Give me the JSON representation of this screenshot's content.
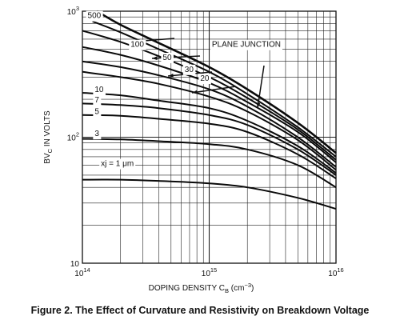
{
  "caption": "Figure 2. The Effect of Curvature and Resistivity on Breakdown Voltage",
  "chart_data": {
    "type": "line",
    "title": "",
    "xlabel": "DOPING DENSITY C_B (cm^-3)",
    "xlabel_parts": {
      "main": "DOPING DENSITY C",
      "sub": "B",
      "unit_open": " (cm",
      "unit_exp": "−3",
      "unit_close": ")"
    },
    "ylabel": "BV_C IN VOLTS",
    "ylabel_parts": {
      "main": "BV",
      "sub": "C",
      "rest": " IN VOLTS"
    },
    "x_scale": "log",
    "y_scale": "log",
    "xlim": [
      100000000000000.0,
      1e+16
    ],
    "ylim": [
      10,
      1000
    ],
    "x_ticks": [
      {
        "value": 100000000000000.0,
        "base": "10",
        "exp": "14"
      },
      {
        "value": 1000000000000000.0,
        "base": "10",
        "exp": "15"
      },
      {
        "value": 1e+16,
        "base": "10",
        "exp": "16"
      }
    ],
    "y_ticks": [
      {
        "value": 10,
        "base": "10",
        "exp": ""
      },
      {
        "value": 100,
        "base": "10",
        "exp": "2"
      },
      {
        "value": 1000,
        "base": "10",
        "exp": "3"
      }
    ],
    "grid": true,
    "series": [
      {
        "name": "500",
        "x": [
          120000000000000.0,
          200000000000000.0,
          400000000000000.0,
          1000000000000000.0,
          2000000000000000.0,
          5000000000000000.0,
          1e+16
        ],
        "y": [
          830,
          680,
          500,
          330,
          220,
          120,
          70
        ]
      },
      {
        "name": "100",
        "x": [
          100000000000000.0,
          200000000000000.0,
          400000000000000.0,
          1000000000000000.0,
          2000000000000000.0,
          5000000000000000.0,
          1e+16
        ],
        "y": [
          700,
          570,
          440,
          300,
          205,
          115,
          66
        ]
      },
      {
        "name": "50",
        "x": [
          100000000000000.0,
          200000000000000.0,
          400000000000000.0,
          1000000000000000.0,
          2000000000000000.0,
          5000000000000000.0,
          1e+16
        ],
        "y": [
          520,
          450,
          370,
          270,
          190,
          110,
          63
        ]
      },
      {
        "name": "30",
        "x": [
          100000000000000.0,
          200000000000000.0,
          400000000000000.0,
          1000000000000000.0,
          2000000000000000.0,
          5000000000000000.0,
          1e+16
        ],
        "y": [
          400,
          360,
          310,
          240,
          175,
          100,
          58
        ]
      },
      {
        "name": "20",
        "x": [
          100000000000000.0,
          200000000000000.0,
          400000000000000.0,
          1000000000000000.0,
          2000000000000000.0,
          5000000000000000.0,
          1e+16
        ],
        "y": [
          330,
          300,
          265,
          210,
          160,
          95,
          55
        ]
      },
      {
        "name": "10",
        "x": [
          100000000000000.0,
          200000000000000.0,
          400000000000000.0,
          1000000000000000.0,
          2000000000000000.0,
          5000000000000000.0,
          1e+16
        ],
        "y": [
          225,
          215,
          195,
          170,
          135,
          85,
          52
        ]
      },
      {
        "name": "7",
        "x": [
          100000000000000.0,
          200000000000000.0,
          400000000000000.0,
          1000000000000000.0,
          2000000000000000.0,
          5000000000000000.0,
          1e+16
        ],
        "y": [
          185,
          180,
          170,
          150,
          125,
          80,
          50
        ]
      },
      {
        "name": "5",
        "x": [
          100000000000000.0,
          200000000000000.0,
          400000000000000.0,
          1000000000000000.0,
          2000000000000000.0,
          5000000000000000.0,
          1e+16
        ],
        "y": [
          150,
          148,
          140,
          128,
          110,
          73,
          47
        ]
      },
      {
        "name": "3",
        "x": [
          100000000000000.0,
          200000000000000.0,
          400000000000000.0,
          1000000000000000.0,
          2000000000000000.0,
          5000000000000000.0,
          1e+16
        ],
        "y": [
          97,
          96,
          93,
          88,
          80,
          60,
          40
        ]
      },
      {
        "name": "xj = 1 μm",
        "x": [
          100000000000000.0,
          200000000000000.0,
          400000000000000.0,
          1000000000000000.0,
          2000000000000000.0,
          5000000000000000.0,
          1e+16
        ],
        "y": [
          46,
          46,
          45,
          43,
          40,
          33,
          27
        ]
      },
      {
        "name": "PLANE JUNCTION",
        "x": [
          130000000000000.0,
          200000000000000.0,
          400000000000000.0,
          1000000000000000.0,
          2000000000000000.0,
          5000000000000000.0,
          1e+16
        ],
        "y": [
          1000,
          780,
          560,
          360,
          240,
          130,
          75
        ]
      }
    ],
    "annotations": [
      {
        "text": "500",
        "x": 110000000000000.0,
        "y": 880
      },
      {
        "text": "100",
        "x": 240000000000000.0,
        "y": 520
      },
      {
        "text": "50",
        "x": 430000000000000.0,
        "y": 410
      },
      {
        "text": "30",
        "x": 640000000000000.0,
        "y": 330
      },
      {
        "text": "20",
        "x": 850000000000000.0,
        "y": 280
      },
      {
        "text": "10",
        "x": 125000000000000.0,
        "y": 228
      },
      {
        "text": "7",
        "x": 125000000000000.0,
        "y": 189
      },
      {
        "text": "5",
        "x": 125000000000000.0,
        "y": 153
      },
      {
        "text": "3",
        "x": 125000000000000.0,
        "y": 102
      },
      {
        "text": "xj = 1 μm",
        "x": 140000000000000.0,
        "y": 59
      },
      {
        "text": "PLANE JUNCTION",
        "x": 1050000000000000.0,
        "y": 520
      }
    ]
  }
}
